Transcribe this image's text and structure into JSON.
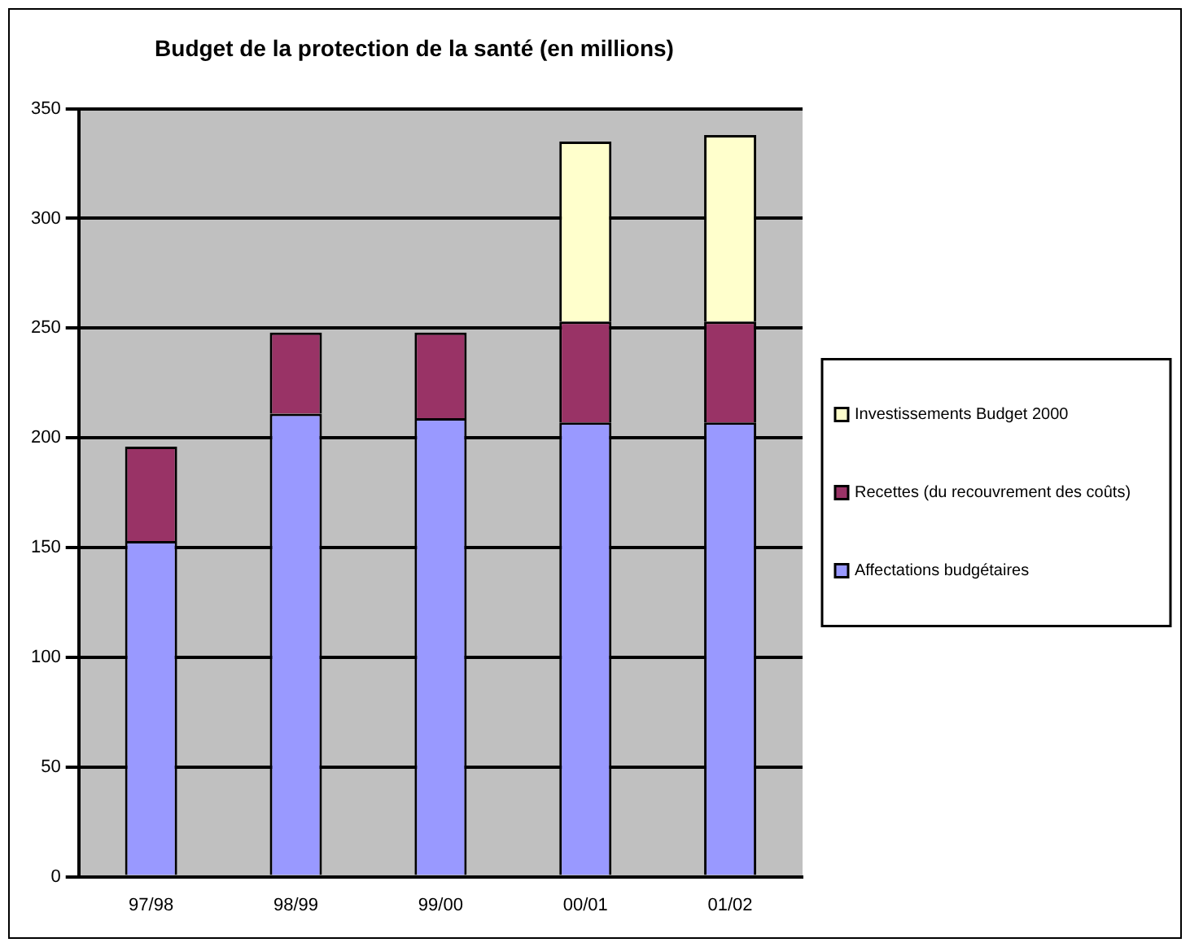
{
  "chart_data": {
    "type": "bar",
    "title": "Budget de la protection de la santé (en millions)",
    "categories": [
      "97/98",
      "98/99",
      "99/00",
      "00/01",
      "01/02"
    ],
    "stacked": true,
    "series": [
      {
        "name": "Affectations budgétaires",
        "color": "#9999ff",
        "values": [
          153,
          211,
          209,
          207,
          207
        ]
      },
      {
        "name": "Recettes (du recouvrement des coûts)",
        "color": "#993366",
        "values": [
          43,
          37,
          39,
          46,
          46
        ]
      },
      {
        "name": "Investissements Budget 2000",
        "color": "#ffffcc",
        "values": [
          null,
          null,
          null,
          82,
          85
        ]
      }
    ],
    "ylim": [
      0,
      350
    ],
    "yticks": [
      0,
      50,
      100,
      150,
      200,
      250,
      300,
      350
    ],
    "grid": "y",
    "legend": "right"
  }
}
